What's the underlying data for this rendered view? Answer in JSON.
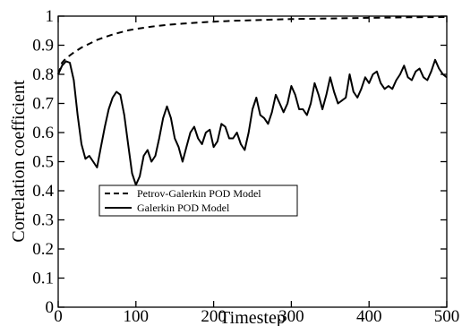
{
  "chart_data": {
    "type": "line",
    "title": "",
    "xlabel": "Timestep",
    "ylabel": "Correlation coefficient",
    "xlim": [
      0,
      500
    ],
    "ylim": [
      0,
      1
    ],
    "xticks": [
      0,
      100,
      200,
      300,
      400,
      500
    ],
    "yticks": [
      0,
      0.1,
      0.2,
      0.3,
      0.4,
      0.5,
      0.6,
      0.7,
      0.8,
      0.9,
      1
    ],
    "xtick_labels": [
      "0",
      "100",
      "200",
      "300",
      "400",
      "500"
    ],
    "ytick_labels": [
      "0",
      "0.1",
      "0.2",
      "0.3",
      "0.4",
      "0.5",
      "0.6",
      "0.7",
      "0.8",
      "0.9",
      "1"
    ],
    "grid": false,
    "legend_position": "center-left",
    "series": [
      {
        "name": "Petrov-Galerkin POD Model",
        "style": "dashed",
        "color": "#000000",
        "x": [
          0,
          5,
          10,
          20,
          30,
          40,
          50,
          60,
          70,
          80,
          90,
          100,
          120,
          140,
          160,
          180,
          200,
          225,
          250,
          275,
          300,
          350,
          400,
          450,
          500
        ],
        "y": [
          0.8,
          0.84,
          0.855,
          0.875,
          0.892,
          0.905,
          0.918,
          0.928,
          0.937,
          0.944,
          0.951,
          0.956,
          0.964,
          0.97,
          0.974,
          0.978,
          0.981,
          0.984,
          0.986,
          0.988,
          0.99,
          0.992,
          0.994,
          0.996,
          0.997
        ]
      },
      {
        "name": "Galerkin POD Model",
        "style": "solid",
        "color": "#000000",
        "x": [
          0,
          5,
          10,
          15,
          20,
          25,
          30,
          35,
          40,
          45,
          50,
          55,
          60,
          65,
          70,
          75,
          80,
          85,
          90,
          95,
          100,
          105,
          110,
          115,
          120,
          125,
          130,
          135,
          140,
          145,
          150,
          155,
          160,
          165,
          170,
          175,
          180,
          185,
          190,
          195,
          200,
          205,
          210,
          215,
          220,
          225,
          230,
          235,
          240,
          245,
          250,
          255,
          260,
          265,
          270,
          275,
          280,
          285,
          290,
          295,
          300,
          305,
          310,
          315,
          320,
          325,
          330,
          335,
          340,
          345,
          350,
          355,
          360,
          365,
          370,
          375,
          380,
          385,
          390,
          395,
          400,
          405,
          410,
          415,
          420,
          425,
          430,
          435,
          440,
          445,
          450,
          455,
          460,
          465,
          470,
          475,
          480,
          485,
          490,
          495,
          500
        ],
        "y": [
          0.8,
          0.83,
          0.845,
          0.84,
          0.78,
          0.66,
          0.56,
          0.51,
          0.52,
          0.5,
          0.48,
          0.55,
          0.62,
          0.68,
          0.72,
          0.74,
          0.73,
          0.66,
          0.56,
          0.46,
          0.42,
          0.45,
          0.52,
          0.54,
          0.5,
          0.52,
          0.58,
          0.65,
          0.69,
          0.65,
          0.58,
          0.55,
          0.5,
          0.55,
          0.6,
          0.62,
          0.58,
          0.56,
          0.6,
          0.61,
          0.55,
          0.57,
          0.63,
          0.62,
          0.58,
          0.58,
          0.6,
          0.56,
          0.54,
          0.6,
          0.68,
          0.72,
          0.66,
          0.65,
          0.63,
          0.67,
          0.73,
          0.7,
          0.67,
          0.7,
          0.76,
          0.73,
          0.68,
          0.68,
          0.66,
          0.7,
          0.77,
          0.73,
          0.68,
          0.73,
          0.79,
          0.74,
          0.7,
          0.71,
          0.72,
          0.8,
          0.74,
          0.72,
          0.75,
          0.79,
          0.77,
          0.8,
          0.81,
          0.77,
          0.75,
          0.76,
          0.75,
          0.78,
          0.8,
          0.83,
          0.79,
          0.78,
          0.81,
          0.82,
          0.79,
          0.78,
          0.81,
          0.85,
          0.82,
          0.8,
          0.79
        ]
      }
    ]
  }
}
